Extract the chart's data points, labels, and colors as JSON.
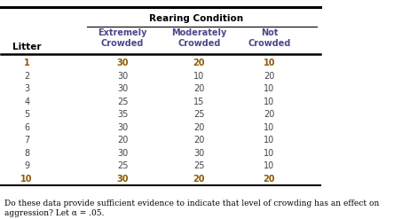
{
  "title": "Rearing Condition",
  "row_header": "Litter",
  "col_label_texts": [
    "Extremely\nCrowded",
    "Moderately\nCrowded",
    "Not\nCrowded"
  ],
  "litters": [
    1,
    2,
    3,
    4,
    5,
    6,
    7,
    8,
    9,
    10
  ],
  "extremely_crowded": [
    30,
    30,
    30,
    25,
    35,
    30,
    20,
    30,
    25,
    30
  ],
  "moderately_crowded": [
    20,
    10,
    20,
    15,
    25,
    20,
    20,
    30,
    25,
    20
  ],
  "not_crowded": [
    10,
    20,
    10,
    10,
    20,
    10,
    10,
    10,
    10,
    20
  ],
  "footer": "Do these data provide sufficient evidence to indicate that level of crowding has an effect on\naggression? Let α = .05.",
  "header_color": "#4a4a8a",
  "data_color": "#8b5a00",
  "litter_color": "#8b5a00",
  "bg_color": "#ffffff",
  "bold_rows": [
    0,
    9
  ]
}
